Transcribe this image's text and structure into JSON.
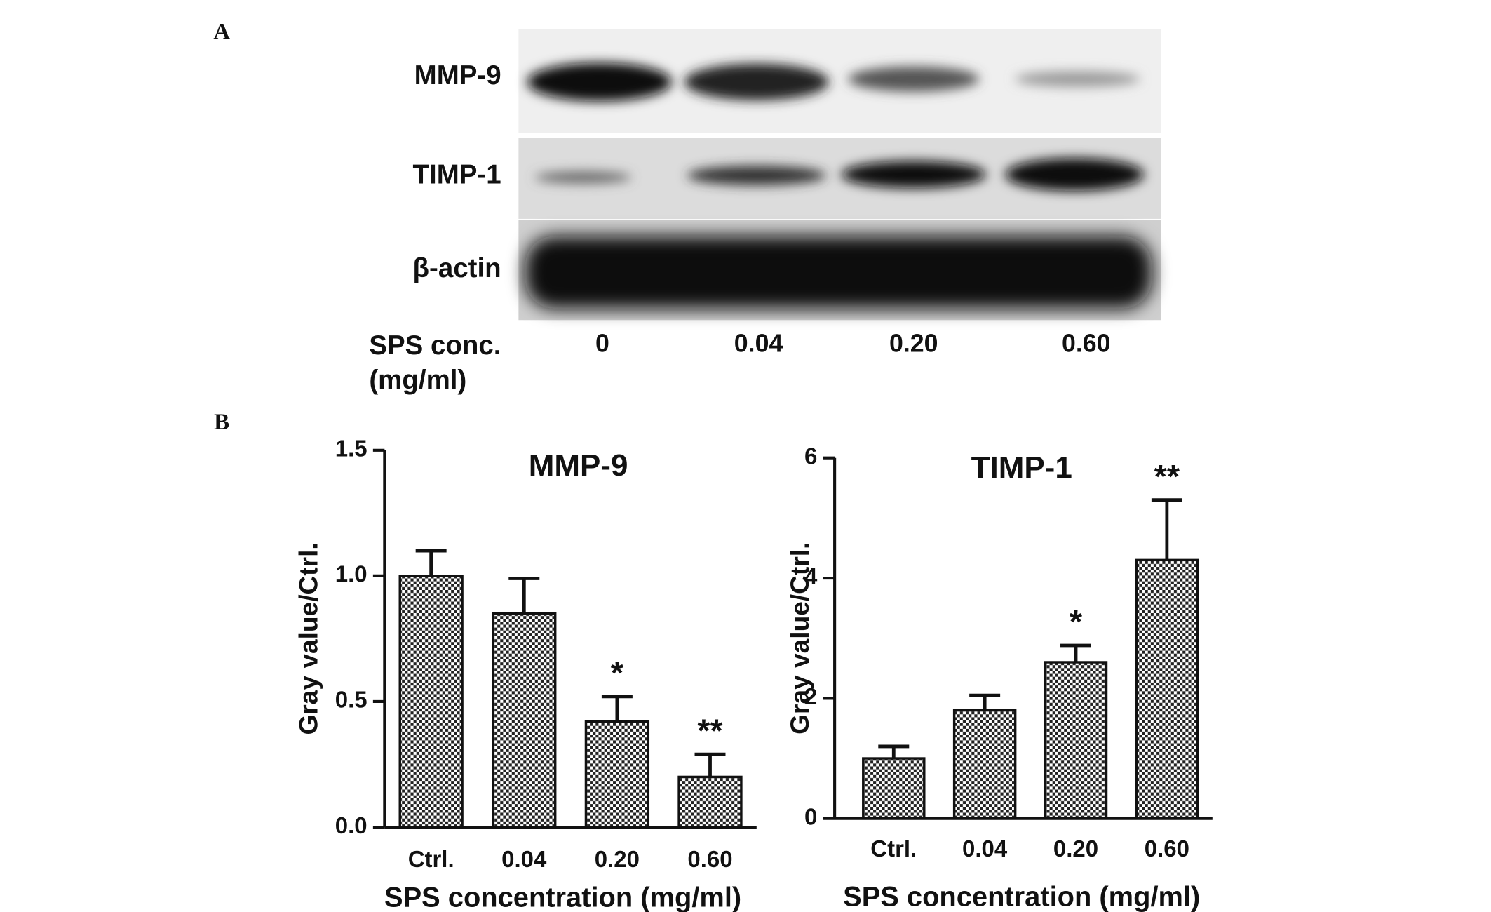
{
  "panel_labels": [
    "A",
    "B"
  ],
  "blot": {
    "rows": [
      "MMP-9",
      "TIMP-1",
      "β-actin"
    ],
    "concentration_label": [
      "SPS conc.",
      "(mg/ml)"
    ],
    "lanes": [
      "0",
      "0.04",
      "0.20",
      "0.60"
    ]
  },
  "chart_data": [
    {
      "type": "bar",
      "title": "MMP-9",
      "xlabel": "SPS concentration (mg/ml)",
      "ylabel": "Gray value/Ctrl.",
      "categories": [
        "Ctrl.",
        "0.04",
        "0.20",
        "0.60"
      ],
      "values": [
        1.0,
        0.85,
        0.42,
        0.2
      ],
      "errors": [
        0.1,
        0.14,
        0.1,
        0.09
      ],
      "annotations": [
        {
          "text": "*",
          "category": "0.20"
        },
        {
          "text": "**",
          "category": "0.60"
        }
      ],
      "ylim": [
        0,
        1.5
      ],
      "yticks": [
        {
          "value": 0,
          "label": "0.0"
        },
        0.5,
        {
          "value": 1,
          "label": "1.0"
        },
        1.5
      ],
      "color": "checkered"
    },
    {
      "type": "bar",
      "title": "TIMP-1",
      "xlabel": "SPS concentration (mg/ml)",
      "ylabel": "Gray value/Ctrl.",
      "categories": [
        "Ctrl.",
        "0.04",
        "0.20",
        "0.60"
      ],
      "values": [
        1.0,
        1.8,
        2.6,
        4.3
      ],
      "errors": [
        0.2,
        0.25,
        0.28,
        1.0
      ],
      "annotations": [
        {
          "text": "*",
          "category": "0.20"
        },
        {
          "text": "**",
          "category": "0.60"
        }
      ],
      "ylim": [
        0,
        6
      ],
      "yticks": [
        0,
        2,
        4,
        6
      ],
      "color": "checkered"
    }
  ]
}
